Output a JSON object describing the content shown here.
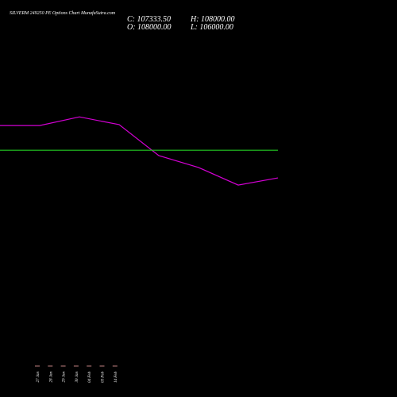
{
  "chart_data": {
    "type": "line",
    "title": "SILVERM 249250 PE Options Chart MunafaSutra.com",
    "ohlc": [
      "C: 107333.50",
      "H: 108000.00",
      "O: 108000.00",
      "L: 106000.00"
    ],
    "categories": [
      null,
      "27 Jan",
      "28 Jan",
      "29 Jan",
      "30 Jan",
      "04 Feb",
      "05 Feb",
      "14 Feb"
    ],
    "series": [
      {
        "color": "#d400d4",
        "values": [
          108000,
          108000,
          108290,
          108030,
          106990,
          106590,
          106000,
          106240
        ]
      },
      {
        "color": "#22cc22",
        "values": [
          107170,
          107170,
          107170,
          107170,
          107170,
          107170,
          107170,
          107170
        ]
      }
    ],
    "ylim": [
      100480,
      111150
    ]
  }
}
